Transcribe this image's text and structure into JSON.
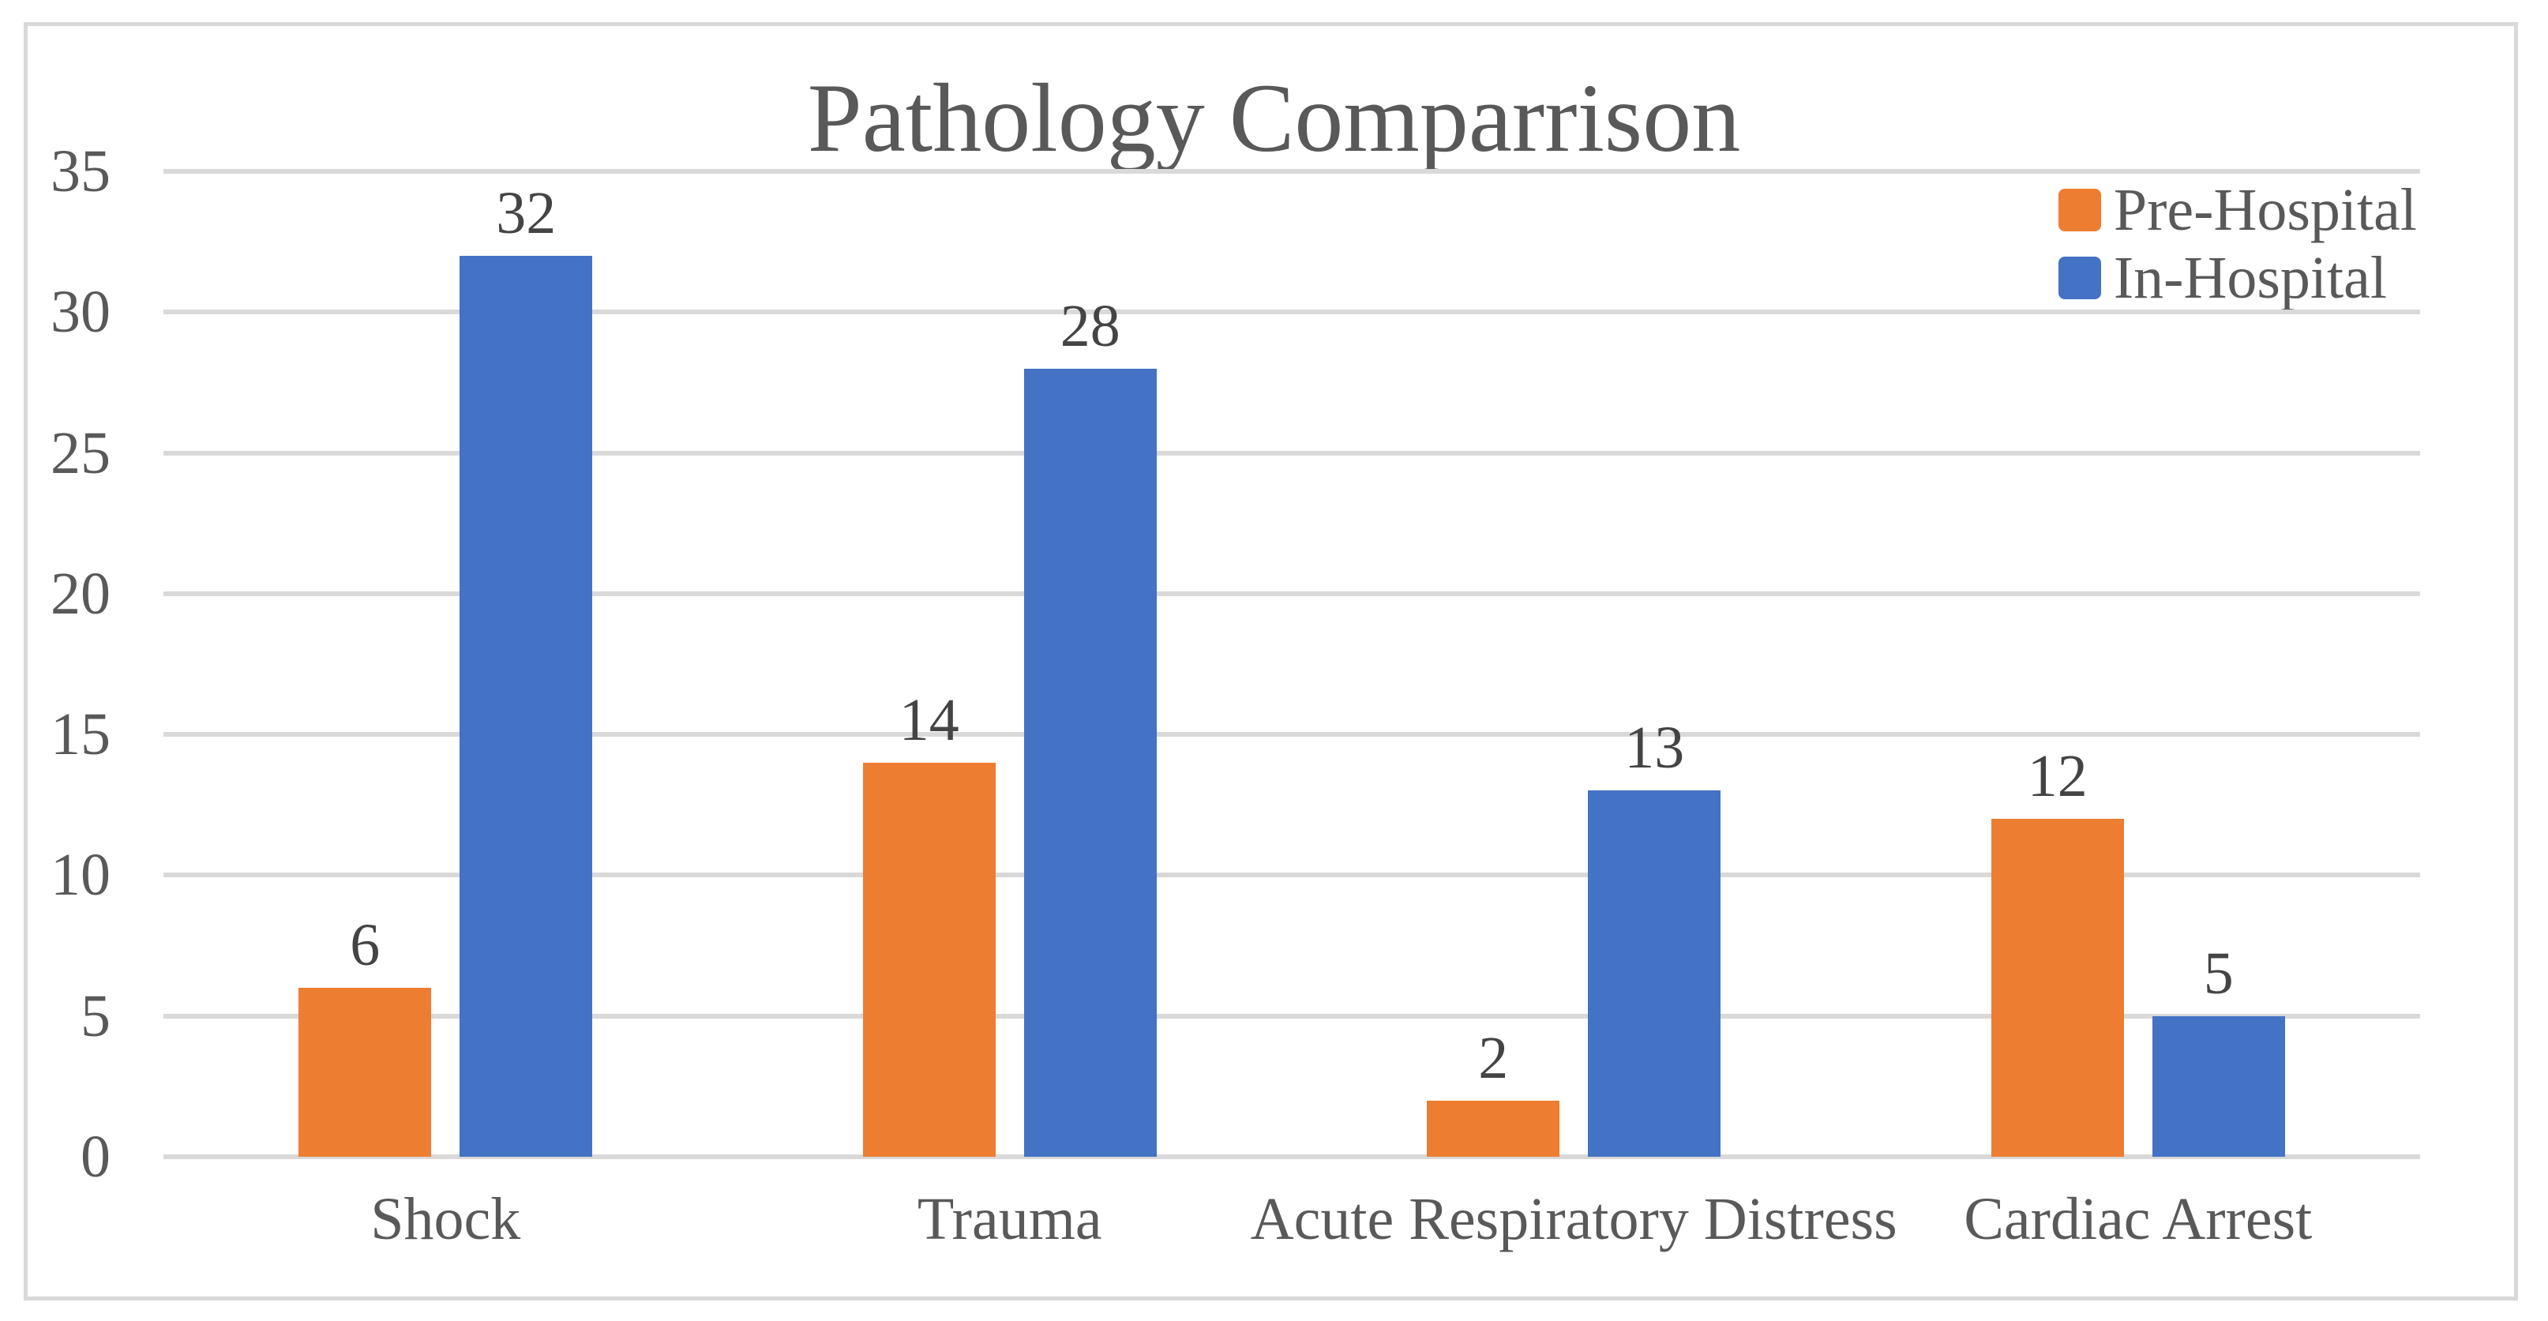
{
  "chart_data": {
    "type": "bar",
    "title": "Pathology Comparrison",
    "categories": [
      "Shock",
      "Trauma",
      "Acute Respiratory Distress",
      "Cardiac Arrest"
    ],
    "series": [
      {
        "name": "Pre-Hospital",
        "color": "#ED7D31",
        "values": [
          6,
          14,
          2,
          12
        ]
      },
      {
        "name": "In-Hospital",
        "color": "#4472C4",
        "values": [
          32,
          28,
          13,
          5
        ]
      }
    ],
    "yticks": [
      0,
      5,
      10,
      15,
      20,
      25,
      30,
      35
    ],
    "ylim": [
      0,
      35
    ],
    "xlabel": "",
    "ylabel": "",
    "grid": true,
    "data_labels": true,
    "legend_position": "top-right"
  },
  "colors": {
    "pre_hospital": "#ED7D31",
    "in_hospital": "#4472C4",
    "gridline": "#D9D9D9",
    "frame_border": "#D9D9D9",
    "text": "#595959",
    "data_label_text": "#444444",
    "background": "#FFFFFF"
  }
}
